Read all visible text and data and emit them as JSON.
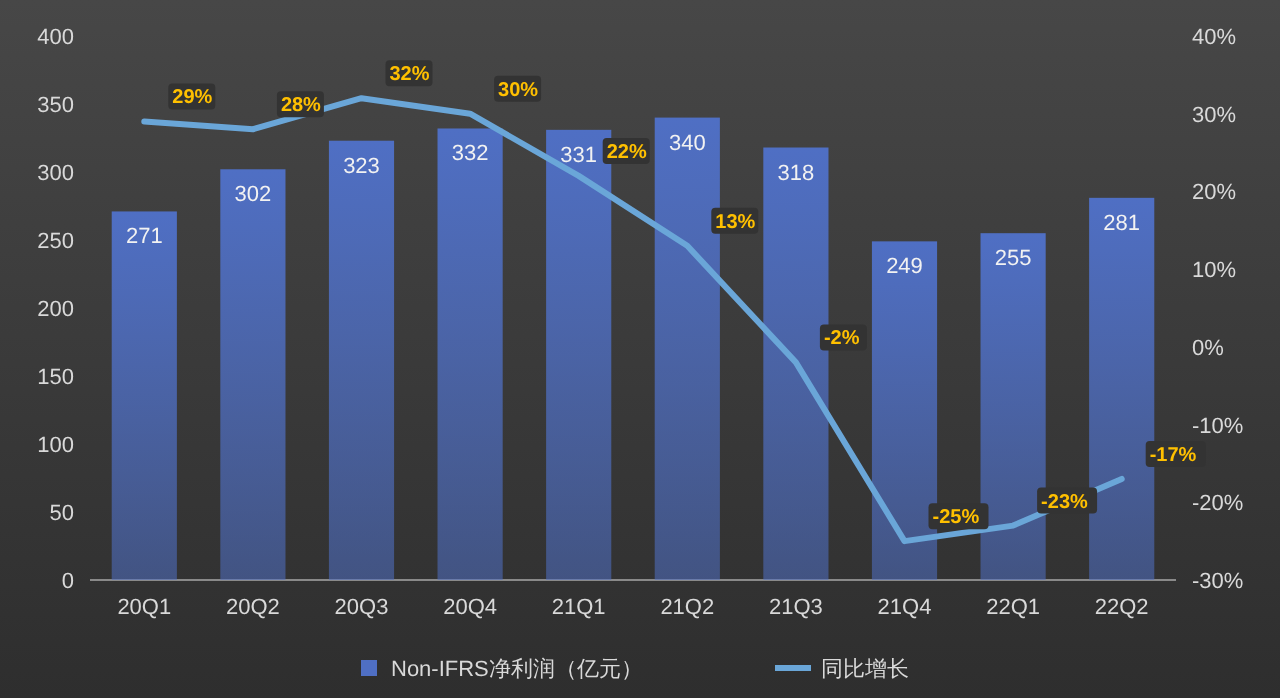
{
  "chart_data": {
    "type": "bar",
    "categories": [
      "20Q1",
      "20Q2",
      "20Q3",
      "20Q4",
      "21Q1",
      "21Q2",
      "21Q3",
      "21Q4",
      "22Q1",
      "22Q2"
    ],
    "ylim": [
      0,
      400
    ],
    "yticks": [
      0,
      50,
      100,
      150,
      200,
      250,
      300,
      350,
      400
    ],
    "y2lim": [
      -30,
      40
    ],
    "y2ticks": [
      {
        "value": -30,
        "label": "-30%"
      },
      {
        "value": -20,
        "label": "-20%"
      },
      {
        "value": -10,
        "label": "-10%"
      },
      {
        "value": 0,
        "label": "0%"
      },
      {
        "value": 10,
        "label": "10%"
      },
      {
        "value": 20,
        "label": "20%"
      },
      {
        "value": 30,
        "label": "30%"
      },
      {
        "value": 40,
        "label": "40%"
      }
    ],
    "legend": "bottom",
    "series": [
      {
        "name": "Non-IFRS净利润（亿元）",
        "color": "#4f6fc4",
        "values": [
          271,
          302,
          323,
          332,
          331,
          340,
          318,
          249,
          255,
          281
        ],
        "value_labels": [
          "271",
          "302",
          "323",
          "332",
          "331",
          "340",
          "318",
          "249",
          "255",
          "281"
        ]
      },
      {
        "name": "同比增长",
        "type": "line",
        "axis": "y2",
        "color": "#6aa6d8",
        "values": [
          29,
          28,
          32,
          30,
          22,
          13,
          -2,
          -25,
          -23,
          -17
        ],
        "value_labels": [
          "29%",
          "28%",
          "32%",
          "30%",
          "22%",
          "13%",
          "-2%",
          "-25%",
          "-23%",
          "-17%"
        ]
      }
    ]
  }
}
